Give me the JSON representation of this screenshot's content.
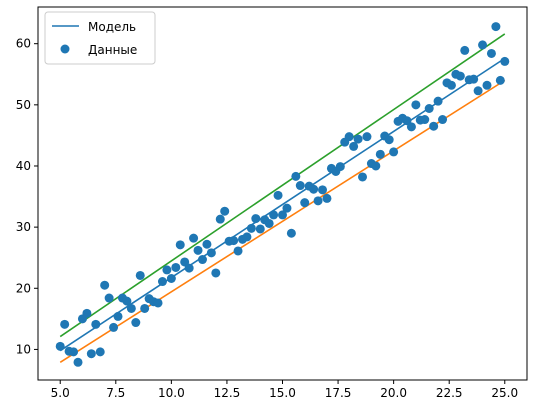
{
  "chart_data": {
    "type": "scatter",
    "title": "",
    "xlabel": "",
    "ylabel": "",
    "xlim": [
      4.0,
      26.0
    ],
    "ylim": [
      5.0,
      66.0
    ],
    "xticks": [
      5.0,
      7.5,
      10.0,
      12.5,
      15.0,
      17.5,
      20.0,
      22.5,
      25.0
    ],
    "xtick_labels": [
      "5.0",
      "7.5",
      "10.0",
      "12.5",
      "15.0",
      "17.5",
      "20.0",
      "22.5",
      "25.0"
    ],
    "yticks": [
      10,
      20,
      30,
      40,
      50,
      60
    ],
    "ytick_labels": [
      "10",
      "20",
      "30",
      "40",
      "50",
      "60"
    ],
    "grid": false,
    "legend": {
      "placement": "top-left",
      "entries": [
        {
          "label": "Модель",
          "kind": "line",
          "color": "#1f77b4"
        },
        {
          "label": "Данные",
          "kind": "marker",
          "color": "#1f77b4"
        }
      ]
    },
    "lines": [
      {
        "name": "Модель",
        "color": "#1f77b4",
        "x": [
          5.0,
          25.0
        ],
        "y": [
          9.8,
          57.6
        ]
      },
      {
        "color": "#ff7f0e",
        "x": [
          5.0,
          25.0
        ],
        "y": [
          7.9,
          54.0
        ]
      },
      {
        "color": "#2ca02c",
        "x": [
          5.0,
          25.0
        ],
        "y": [
          12.1,
          61.6
        ]
      }
    ],
    "scatter": {
      "name": "Данные",
      "color": "#1f77b4",
      "points": [
        [
          5.0,
          10.5
        ],
        [
          5.2,
          14.1
        ],
        [
          5.4,
          9.7
        ],
        [
          5.6,
          9.6
        ],
        [
          5.8,
          7.9
        ],
        [
          6.0,
          15.0
        ],
        [
          6.2,
          15.9
        ],
        [
          6.4,
          9.3
        ],
        [
          6.6,
          14.1
        ],
        [
          6.8,
          9.6
        ],
        [
          7.0,
          20.5
        ],
        [
          7.2,
          18.4
        ],
        [
          7.4,
          13.6
        ],
        [
          7.6,
          15.4
        ],
        [
          7.8,
          18.4
        ],
        [
          8.0,
          17.9
        ],
        [
          8.2,
          16.7
        ],
        [
          8.4,
          14.4
        ],
        [
          8.6,
          22.1
        ],
        [
          8.8,
          16.7
        ],
        [
          9.0,
          18.3
        ],
        [
          9.2,
          17.8
        ],
        [
          9.4,
          17.6
        ],
        [
          9.6,
          21.1
        ],
        [
          9.8,
          23.0
        ],
        [
          10.0,
          21.6
        ],
        [
          10.2,
          23.4
        ],
        [
          10.4,
          27.1
        ],
        [
          10.6,
          24.3
        ],
        [
          10.8,
          23.3
        ],
        [
          11.0,
          28.2
        ],
        [
          11.2,
          26.2
        ],
        [
          11.4,
          24.7
        ],
        [
          11.6,
          27.2
        ],
        [
          11.8,
          25.8
        ],
        [
          12.0,
          22.5
        ],
        [
          12.2,
          31.3
        ],
        [
          12.4,
          32.6
        ],
        [
          12.6,
          27.7
        ],
        [
          12.8,
          27.8
        ],
        [
          13.0,
          26.1
        ],
        [
          13.2,
          28.0
        ],
        [
          13.4,
          28.4
        ],
        [
          13.6,
          29.8
        ],
        [
          13.8,
          31.4
        ],
        [
          14.0,
          29.7
        ],
        [
          14.2,
          31.2
        ],
        [
          14.4,
          30.6
        ],
        [
          14.6,
          32.0
        ],
        [
          14.8,
          35.2
        ],
        [
          15.0,
          32.0
        ],
        [
          15.2,
          33.1
        ],
        [
          15.4,
          29.0
        ],
        [
          15.6,
          38.3
        ],
        [
          15.8,
          36.8
        ],
        [
          16.0,
          34.0
        ],
        [
          16.2,
          36.7
        ],
        [
          16.4,
          36.2
        ],
        [
          16.6,
          34.3
        ],
        [
          16.8,
          36.1
        ],
        [
          17.0,
          34.7
        ],
        [
          17.2,
          39.6
        ],
        [
          17.4,
          39.1
        ],
        [
          17.6,
          39.9
        ],
        [
          17.8,
          43.9
        ],
        [
          18.0,
          44.8
        ],
        [
          18.2,
          43.2
        ],
        [
          18.4,
          44.4
        ],
        [
          18.6,
          38.2
        ],
        [
          18.8,
          44.8
        ],
        [
          19.0,
          40.4
        ],
        [
          19.2,
          40.0
        ],
        [
          19.4,
          41.9
        ],
        [
          19.6,
          44.9
        ],
        [
          19.8,
          44.3
        ],
        [
          20.0,
          42.3
        ],
        [
          20.2,
          47.3
        ],
        [
          20.4,
          47.8
        ],
        [
          20.6,
          47.4
        ],
        [
          20.8,
          46.4
        ],
        [
          21.0,
          50.0
        ],
        [
          21.2,
          47.5
        ],
        [
          21.4,
          47.6
        ],
        [
          21.6,
          49.4
        ],
        [
          21.8,
          46.5
        ],
        [
          22.0,
          50.6
        ],
        [
          22.2,
          47.6
        ],
        [
          22.4,
          53.6
        ],
        [
          22.6,
          53.2
        ],
        [
          22.8,
          55.0
        ],
        [
          23.0,
          54.7
        ],
        [
          23.2,
          58.9
        ],
        [
          23.4,
          54.1
        ],
        [
          23.6,
          54.2
        ],
        [
          23.8,
          52.3
        ],
        [
          24.0,
          59.8
        ],
        [
          24.2,
          53.2
        ],
        [
          24.4,
          58.4
        ],
        [
          24.6,
          62.8
        ],
        [
          24.8,
          54.0
        ],
        [
          25.0,
          57.1
        ]
      ]
    }
  }
}
